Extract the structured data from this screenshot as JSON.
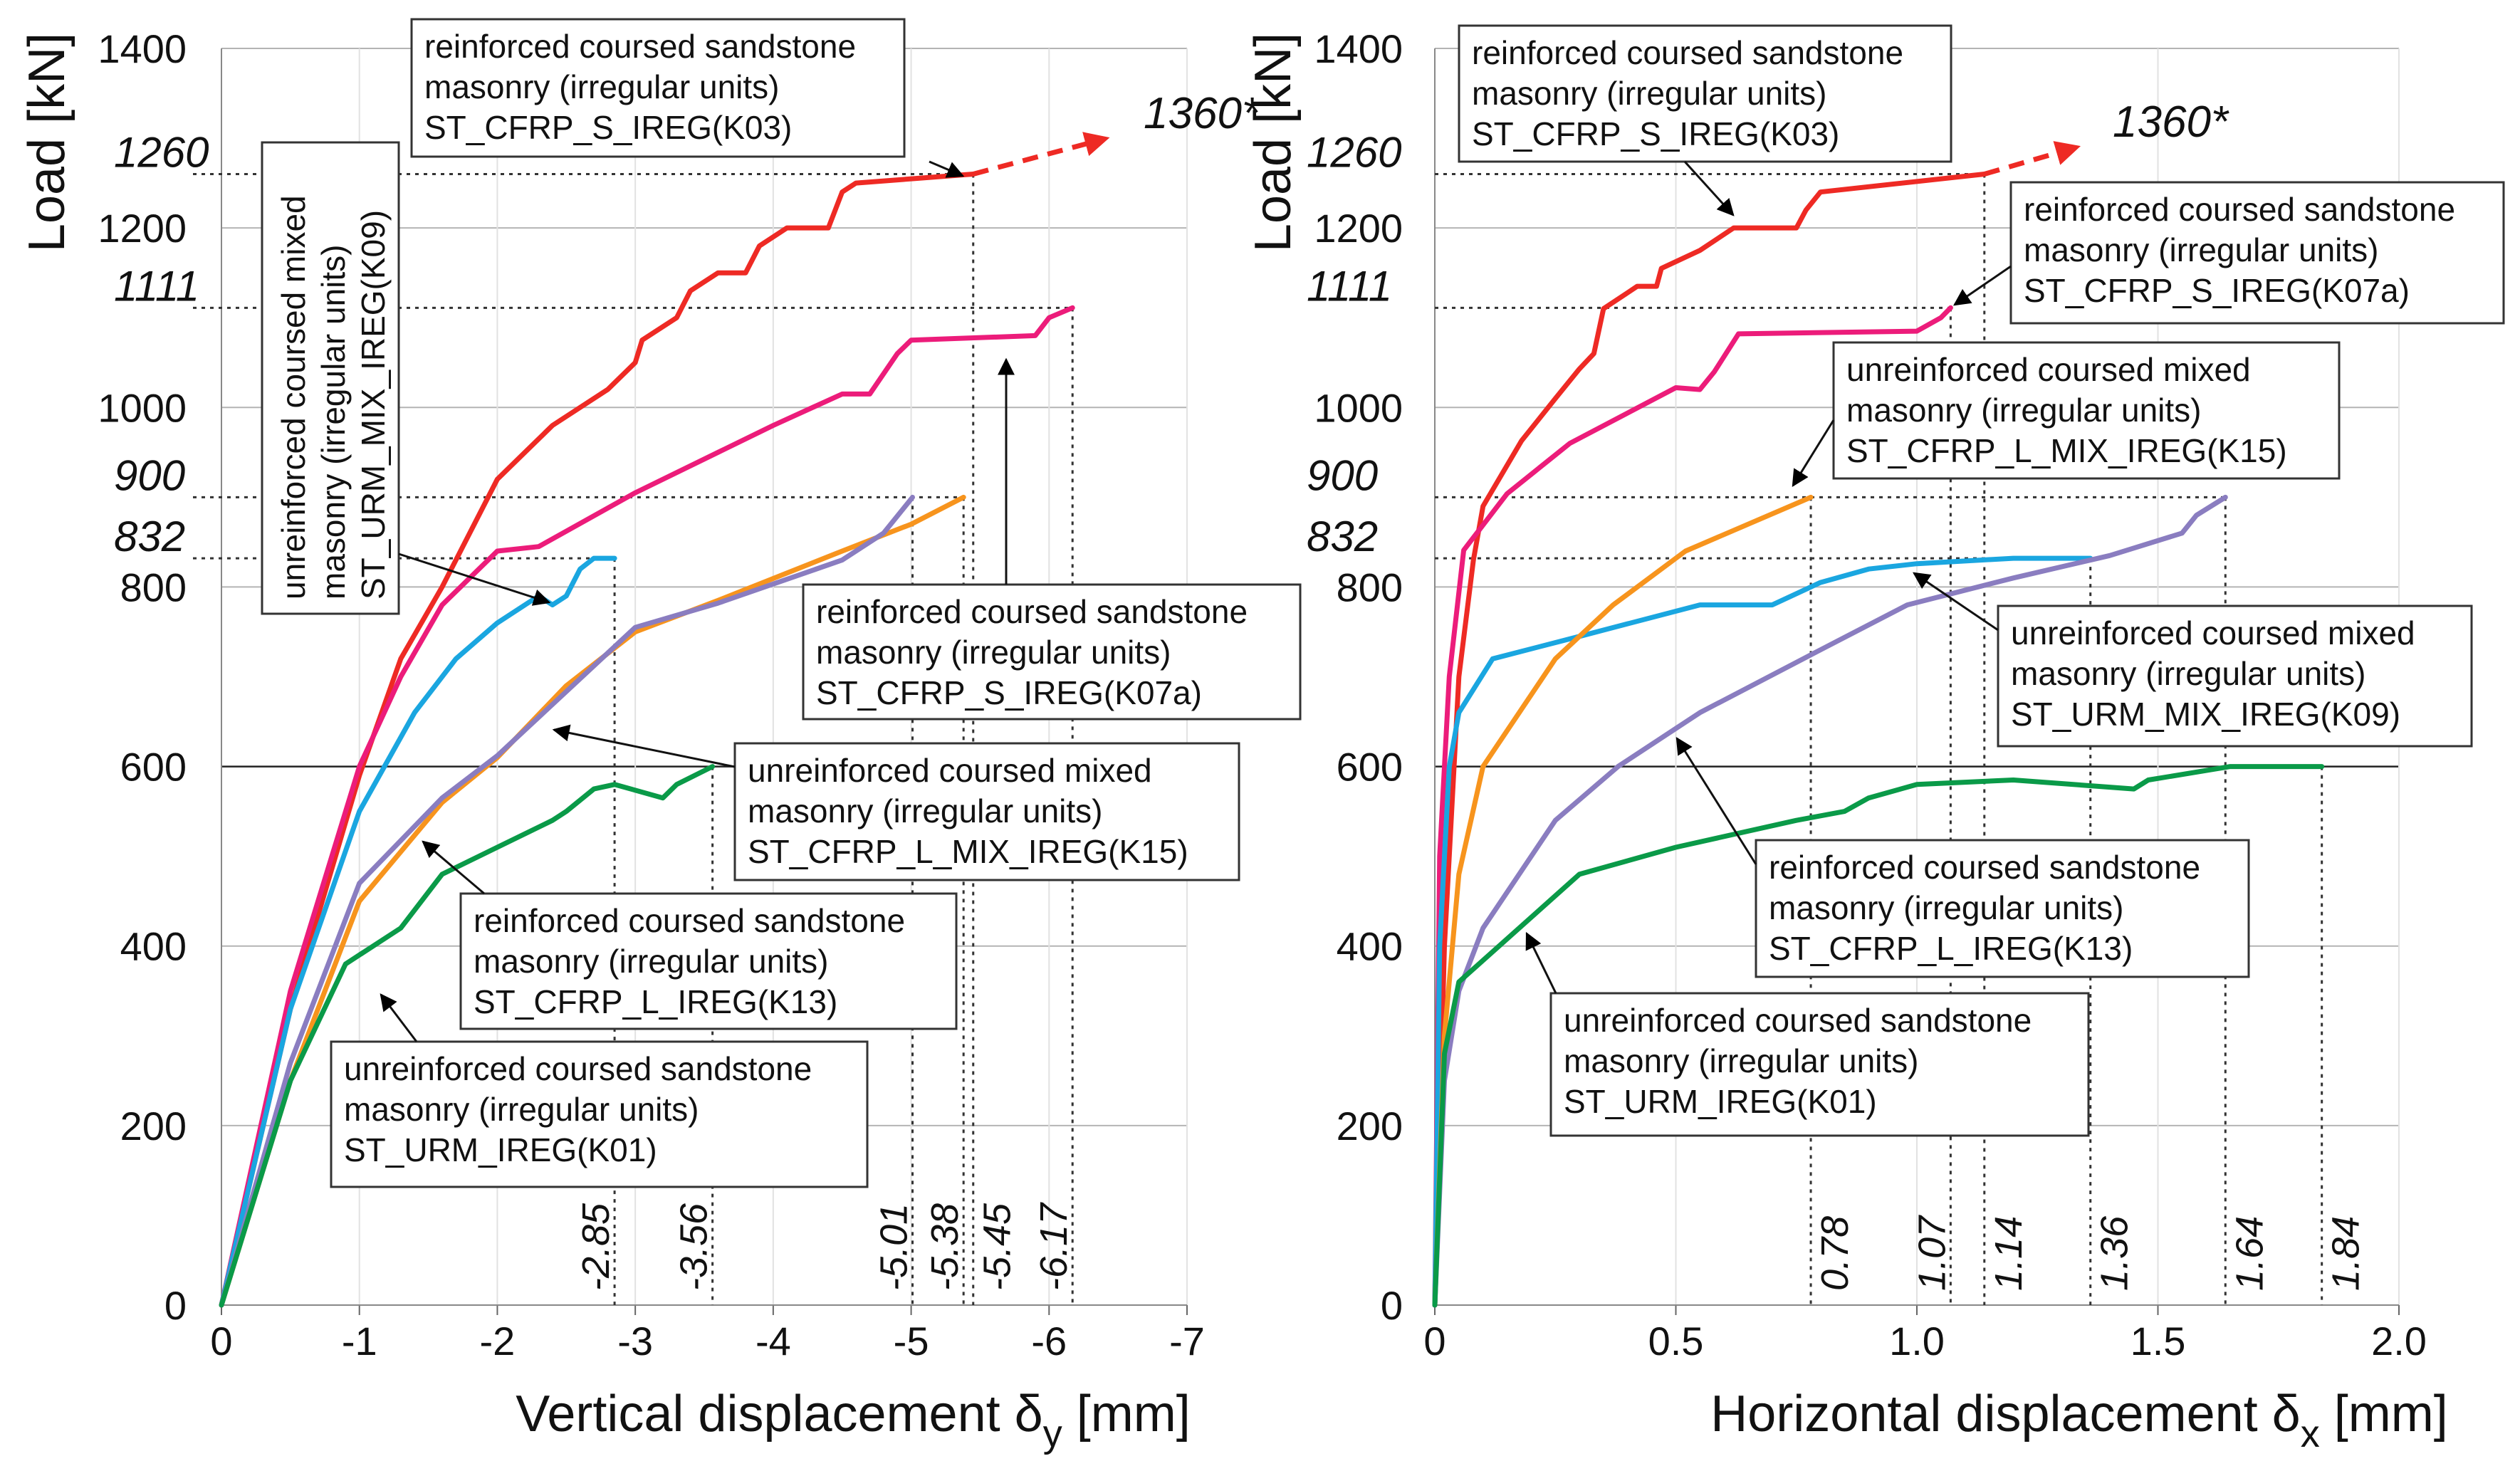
{
  "colors": {
    "K03": "#ee2a24",
    "K07a": "#ec1c7a",
    "K09": "#1aa6e0",
    "K15": "#f7941d",
    "K13": "#8a7dc0",
    "K01": "#0a9a48",
    "grid": "#b4b4b4",
    "annot": "#000000"
  },
  "chart_data": [
    {
      "type": "line",
      "ylabel": "Load [kN]",
      "xlabel": {
        "main": "Vertical displacement δ",
        "sub": "y",
        "unit": " [mm]"
      },
      "xlim": [
        0,
        -7
      ],
      "ylim": [
        0,
        1400
      ],
      "xticks": [
        "0",
        "-1",
        "-2",
        "-3",
        "-4",
        "-5",
        "-6",
        "-7"
      ],
      "xtick_values": [
        0,
        -1,
        -2,
        -3,
        -4,
        -5,
        -6,
        -7
      ],
      "yticks": [
        0,
        200,
        400,
        600,
        800,
        1000,
        1200,
        1400
      ],
      "grid": true,
      "extrapolation": {
        "from": [
          -5.45,
          1260
        ],
        "to": [
          -6.3,
          1295
        ],
        "label": "1360*"
      },
      "load_markers": [
        {
          "label": "1260",
          "value": 1260,
          "x_end": -5.45
        },
        {
          "label": "1111",
          "value": 1111,
          "x_end": -6.17
        },
        {
          "label": "900",
          "value": 900,
          "x_end": -5.38
        },
        {
          "label": "832",
          "value": 832,
          "x_end": -2.85
        }
      ],
      "disp_markers": [
        {
          "label": "-2.85",
          "x": -2.85,
          "load": 832
        },
        {
          "label": "-3.56",
          "x": -3.56,
          "load": 600
        },
        {
          "label": "-5.01",
          "x": -5.01,
          "load": 900
        },
        {
          "label": "-5.38",
          "x": -5.38,
          "load": 900
        },
        {
          "label": "-5.45",
          "x": -5.45,
          "load": 1260
        },
        {
          "label": "-6.17",
          "x": -6.17,
          "load": 1111
        }
      ],
      "series": [
        {
          "id": "K03",
          "name": "ST_CFRP_S_IREG(K03)",
          "points": [
            [
              0,
              0
            ],
            [
              -0.5,
              330
            ],
            [
              -1,
              590
            ],
            [
              -1.3,
              720
            ],
            [
              -1.6,
              800
            ],
            [
              -2,
              920
            ],
            [
              -2.4,
              980
            ],
            [
              -2.8,
              1020
            ],
            [
              -3,
              1050
            ],
            [
              -3.05,
              1075
            ],
            [
              -3.3,
              1100
            ],
            [
              -3.4,
              1130
            ],
            [
              -3.6,
              1150
            ],
            [
              -3.8,
              1150
            ],
            [
              -3.9,
              1180
            ],
            [
              -4.1,
              1200
            ],
            [
              -4.4,
              1200
            ],
            [
              -4.5,
              1240
            ],
            [
              -4.6,
              1250
            ],
            [
              -5.45,
              1260
            ]
          ]
        },
        {
          "id": "K07a",
          "name": "ST_CFRP_S_IREG(K07a)",
          "points": [
            [
              0,
              0
            ],
            [
              -0.5,
              350
            ],
            [
              -1,
              600
            ],
            [
              -1.3,
              700
            ],
            [
              -1.6,
              780
            ],
            [
              -2,
              840
            ],
            [
              -2.3,
              845
            ],
            [
              -3,
              905
            ],
            [
              -3.6,
              950
            ],
            [
              -4,
              980
            ],
            [
              -4.5,
              1015
            ],
            [
              -4.7,
              1015
            ],
            [
              -4.9,
              1060
            ],
            [
              -5,
              1075
            ],
            [
              -5.9,
              1080
            ],
            [
              -6,
              1100
            ],
            [
              -6.17,
              1111
            ]
          ]
        },
        {
          "id": "K09",
          "name": "ST_URM_MIX_IREG(K09)",
          "points": [
            [
              0,
              0
            ],
            [
              -0.5,
              330
            ],
            [
              -1,
              550
            ],
            [
              -1.4,
              660
            ],
            [
              -1.7,
              720
            ],
            [
              -2,
              760
            ],
            [
              -2.3,
              790
            ],
            [
              -2.4,
              780
            ],
            [
              -2.5,
              790
            ],
            [
              -2.6,
              820
            ],
            [
              -2.7,
              832
            ],
            [
              -2.85,
              832
            ]
          ]
        },
        {
          "id": "K15",
          "name": "ST_CFRP_L_MIX_IREG(K15)",
          "points": [
            [
              0,
              0
            ],
            [
              -0.5,
              250
            ],
            [
              -1,
              450
            ],
            [
              -1.6,
              560
            ],
            [
              -2,
              610
            ],
            [
              -2.5,
              690
            ],
            [
              -3,
              750
            ],
            [
              -3.6,
              785
            ],
            [
              -4.5,
              840
            ],
            [
              -5,
              870
            ],
            [
              -5.38,
              900
            ]
          ]
        },
        {
          "id": "K13",
          "name": "ST_CFRP_L_IREG(K13)",
          "points": [
            [
              0,
              0
            ],
            [
              -0.5,
              270
            ],
            [
              -1,
              470
            ],
            [
              -1.6,
              565
            ],
            [
              -2,
              612
            ],
            [
              -3,
              755
            ],
            [
              -3.6,
              782
            ],
            [
              -4.5,
              830
            ],
            [
              -4.8,
              860
            ],
            [
              -5.01,
              900
            ]
          ]
        },
        {
          "id": "K01",
          "name": "ST_URM_IREG(K01)",
          "points": [
            [
              0,
              0
            ],
            [
              -0.5,
              250
            ],
            [
              -0.9,
              380
            ],
            [
              -1.3,
              420
            ],
            [
              -1.6,
              480
            ],
            [
              -2,
              510
            ],
            [
              -2.4,
              540
            ],
            [
              -2.5,
              550
            ],
            [
              -2.7,
              575
            ],
            [
              -2.85,
              580
            ],
            [
              -3.2,
              565
            ],
            [
              -3.3,
              580
            ],
            [
              -3.56,
              600
            ]
          ]
        }
      ],
      "annotations": [
        {
          "series": "K03",
          "lines": [
            "reinforced coursed sandstone",
            "masonry (irregular units)",
            "ST_CFRP_S_IREG(K03)"
          ]
        },
        {
          "series": "K09",
          "lines": [
            "unreinforced coursed mixed",
            "masonry (irregular units)",
            "ST_URM_MIX_IREG(K09)"
          ]
        },
        {
          "series": "K07a",
          "lines": [
            "reinforced coursed sandstone",
            "masonry (irregular units)",
            "ST_CFRP_S_IREG(K07a)"
          ]
        },
        {
          "series": "K15",
          "lines": [
            "unreinforced coursed mixed",
            "masonry (irregular units)",
            "ST_CFRP_L_MIX_IREG(K15)"
          ]
        },
        {
          "series": "K13",
          "lines": [
            "reinforced coursed sandstone",
            "masonry (irregular units)",
            "ST_CFRP_L_IREG(K13)"
          ]
        },
        {
          "series": "K01",
          "lines": [
            "unreinforced coursed sandstone",
            "masonry (irregular units)",
            "ST_URM_IREG(K01)"
          ]
        }
      ]
    },
    {
      "type": "line",
      "ylabel": "Load [kN]",
      "xlabel": {
        "main": "Horizontal displacement δ",
        "sub": "x",
        "unit": " [mm]"
      },
      "xlim": [
        0,
        2.0
      ],
      "ylim": [
        0,
        1400
      ],
      "xticks": [
        "0",
        "0.5",
        "1.0",
        "1.5",
        "2.0"
      ],
      "xtick_values": [
        0,
        0.5,
        1.0,
        1.5,
        2.0
      ],
      "yticks": [
        0,
        200,
        400,
        600,
        800,
        1000,
        1200,
        1400
      ],
      "grid": true,
      "extrapolation": {
        "from": [
          1.14,
          1260
        ],
        "to": [
          1.3,
          1285
        ],
        "label": "1360*"
      },
      "load_markers": [
        {
          "label": "1260",
          "value": 1260,
          "x_end": 1.14
        },
        {
          "label": "1111",
          "value": 1111,
          "x_end": 1.07
        },
        {
          "label": "900",
          "value": 900,
          "x_end": 1.64
        },
        {
          "label": "832",
          "value": 832,
          "x_end": 1.36
        }
      ],
      "disp_markers": [
        {
          "label": "0.78",
          "x": 0.78,
          "load": 900
        },
        {
          "label": "1.07",
          "x": 1.07,
          "load": 1111
        },
        {
          "label": "1.14",
          "x": 1.14,
          "load": 1260
        },
        {
          "label": "1.36",
          "x": 1.36,
          "load": 832
        },
        {
          "label": "1.64",
          "x": 1.64,
          "load": 900
        },
        {
          "label": "1.84",
          "x": 1.84,
          "load": 600
        }
      ],
      "series": [
        {
          "id": "K03",
          "name": "ST_CFRP_S_IREG(K03)",
          "points": [
            [
              0,
              0
            ],
            [
              0.02,
              400
            ],
            [
              0.05,
              700
            ],
            [
              0.08,
              830
            ],
            [
              0.1,
              890
            ],
            [
              0.18,
              963
            ],
            [
              0.25,
              1010
            ],
            [
              0.3,
              1043
            ],
            [
              0.33,
              1060
            ],
            [
              0.35,
              1110
            ],
            [
              0.42,
              1135
            ],
            [
              0.46,
              1135
            ],
            [
              0.47,
              1155
            ],
            [
              0.55,
              1175
            ],
            [
              0.62,
              1200
            ],
            [
              0.75,
              1200
            ],
            [
              0.77,
              1220
            ],
            [
              0.8,
              1240
            ],
            [
              1.14,
              1260
            ]
          ]
        },
        {
          "id": "K07a",
          "name": "ST_CFRP_S_IREG(K07a)",
          "points": [
            [
              0,
              0
            ],
            [
              0.01,
              500
            ],
            [
              0.03,
              700
            ],
            [
              0.06,
              841
            ],
            [
              0.15,
              904
            ],
            [
              0.28,
              960
            ],
            [
              0.5,
              1022
            ],
            [
              0.55,
              1020
            ],
            [
              0.58,
              1040
            ],
            [
              0.63,
              1082
            ],
            [
              1.0,
              1085
            ],
            [
              1.05,
              1100
            ],
            [
              1.07,
              1111
            ]
          ]
        },
        {
          "id": "K09",
          "name": "ST_URM_MIX_IREG(K09)",
          "points": [
            [
              0,
              0
            ],
            [
              0.01,
              400
            ],
            [
              0.03,
              600
            ],
            [
              0.05,
              660
            ],
            [
              0.12,
              720
            ],
            [
              0.3,
              745
            ],
            [
              0.55,
              780
            ],
            [
              0.7,
              780
            ],
            [
              0.8,
              805
            ],
            [
              0.9,
              820
            ],
            [
              1.0,
              826
            ],
            [
              1.2,
              832
            ],
            [
              1.36,
              832
            ]
          ]
        },
        {
          "id": "K15",
          "name": "ST_CFRP_L_MIX_IREG(K15)",
          "points": [
            [
              0,
              0
            ],
            [
              0.02,
              300
            ],
            [
              0.05,
              480
            ],
            [
              0.1,
              600
            ],
            [
              0.25,
              720
            ],
            [
              0.37,
              780
            ],
            [
              0.52,
              840
            ],
            [
              0.78,
              900
            ]
          ]
        },
        {
          "id": "K13",
          "name": "ST_CFRP_L_IREG(K13)",
          "points": [
            [
              0,
              0
            ],
            [
              0.02,
              250
            ],
            [
              0.05,
              350
            ],
            [
              0.1,
              420
            ],
            [
              0.25,
              540
            ],
            [
              0.38,
              600
            ],
            [
              0.55,
              660
            ],
            [
              0.8,
              730
            ],
            [
              0.98,
              780
            ],
            [
              1.2,
              810
            ],
            [
              1.4,
              835
            ],
            [
              1.55,
              860
            ],
            [
              1.58,
              880
            ],
            [
              1.64,
              900
            ]
          ]
        },
        {
          "id": "K01",
          "name": "ST_URM_IREG(K01)",
          "points": [
            [
              0,
              0
            ],
            [
              0.02,
              280
            ],
            [
              0.05,
              360
            ],
            [
              0.3,
              480
            ],
            [
              0.5,
              510
            ],
            [
              0.75,
              540
            ],
            [
              0.85,
              550
            ],
            [
              0.9,
              565
            ],
            [
              1.0,
              580
            ],
            [
              1.2,
              585
            ],
            [
              1.45,
              575
            ],
            [
              1.48,
              585
            ],
            [
              1.65,
              600
            ],
            [
              1.84,
              600
            ]
          ]
        }
      ],
      "annotations": [
        {
          "series": "K03",
          "lines": [
            "reinforced coursed sandstone",
            "masonry (irregular units)",
            "ST_CFRP_S_IREG(K03)"
          ]
        },
        {
          "series": "K07a",
          "lines": [
            "reinforced coursed sandstone",
            "masonry (irregular units)",
            "ST_CFRP_S_IREG(K07a)"
          ]
        },
        {
          "series": "K15",
          "lines": [
            "unreinforced coursed mixed",
            "masonry (irregular units)",
            "ST_CFRP_L_MIX_IREG(K15)"
          ]
        },
        {
          "series": "K09",
          "lines": [
            "unreinforced coursed mixed",
            "masonry (irregular units)",
            "ST_URM_MIX_IREG(K09)"
          ]
        },
        {
          "series": "K13",
          "lines": [
            "reinforced coursed sandstone",
            "masonry (irregular units)",
            "ST_CFRP_L_IREG(K13)"
          ]
        },
        {
          "series": "K01",
          "lines": [
            "unreinforced coursed sandstone",
            "masonry (irregular units)",
            "ST_URM_IREG(K01)"
          ]
        }
      ]
    }
  ]
}
